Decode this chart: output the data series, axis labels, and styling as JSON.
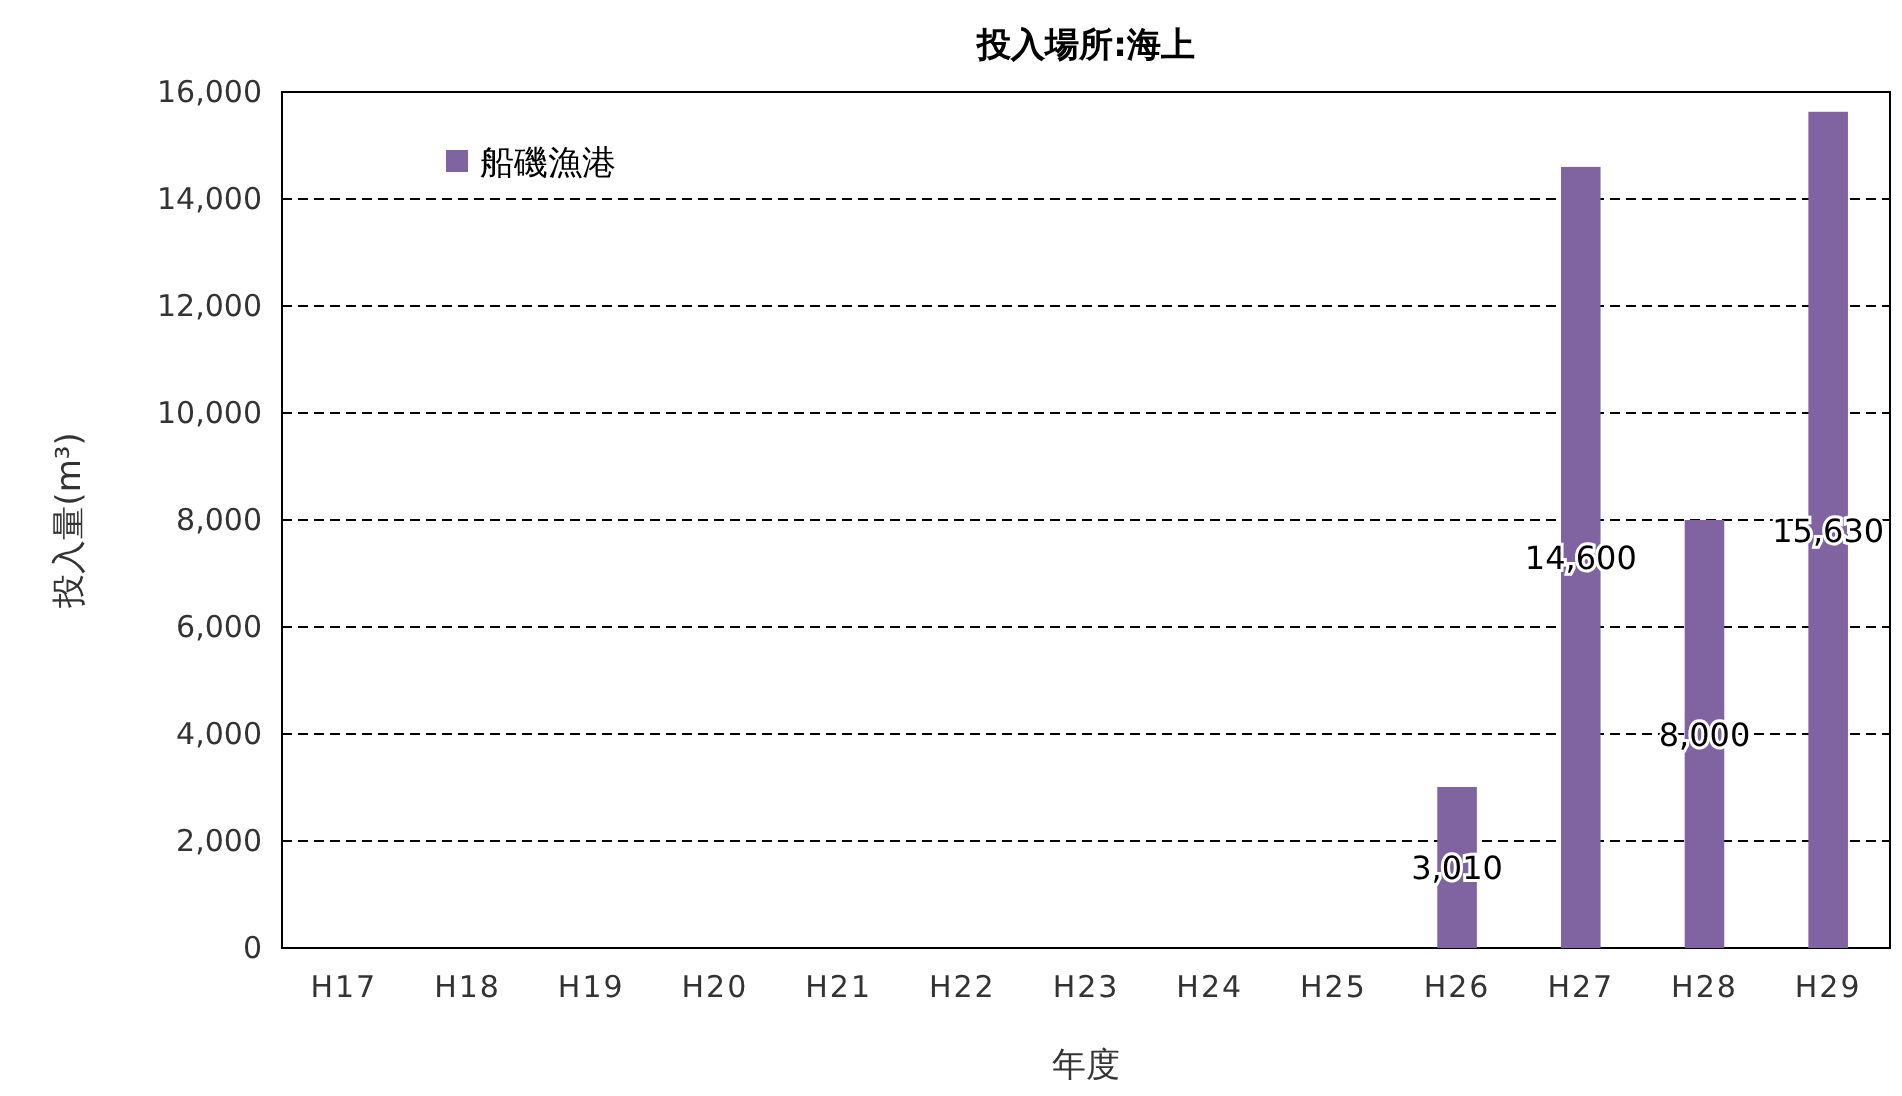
{
  "chart_data": {
    "type": "bar",
    "title": "投入場所:海上",
    "xlabel": "年度",
    "ylabel": "投入量(m³)",
    "categories": [
      "H17",
      "H18",
      "H19",
      "H20",
      "H21",
      "H22",
      "H23",
      "H24",
      "H25",
      "H26",
      "H27",
      "H28",
      "H29"
    ],
    "series": [
      {
        "name": "船磯漁港",
        "color": "#8064a2",
        "values": [
          null,
          null,
          null,
          null,
          null,
          null,
          null,
          null,
          null,
          3010,
          14600,
          8000,
          15630
        ],
        "value_labels": [
          null,
          null,
          null,
          null,
          null,
          null,
          null,
          null,
          null,
          "3,010",
          "14,600",
          "8,000",
          "15,630"
        ]
      }
    ],
    "ylim": [
      0,
      16000
    ],
    "yticks": [
      {
        "value": 0,
        "label": "0"
      },
      {
        "value": 2000,
        "label": "2,000"
      },
      {
        "value": 4000,
        "label": "4,000"
      },
      {
        "value": 6000,
        "label": "6,000"
      },
      {
        "value": 8000,
        "label": "8,000"
      },
      {
        "value": 10000,
        "label": "10,000"
      },
      {
        "value": 12000,
        "label": "12,000"
      },
      {
        "value": 14000,
        "label": "14,000"
      },
      {
        "value": 16000,
        "label": "16,000"
      }
    ],
    "grid": "y",
    "legend": "top left"
  }
}
